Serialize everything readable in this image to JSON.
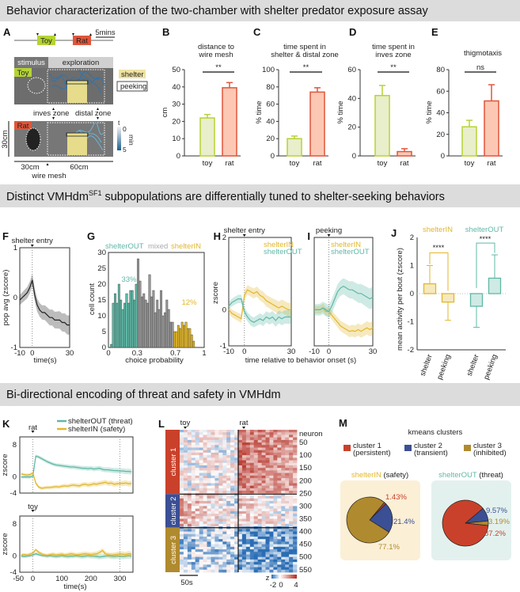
{
  "headers": {
    "row1": "Behavior characterization of the two-chamber with shelter predator exposure assay",
    "row2_pre": "Distinct VMHdm",
    "row2_sup": "SF1",
    "row2_post": " subpopulations are differentially tuned to shelter-seeking behaviors",
    "row3": "Bi-directional encoding of threat and safety in VMHdm"
  },
  "colors": {
    "toy": "#b5d334",
    "rat": "#e0553a",
    "shelterIN": "#e2b72a",
    "shelterOUT": "#5fb8a6",
    "mixed": "#999999",
    "cluster1": "#c9412a",
    "cluster2": "#3b4f94",
    "cluster3": "#b08a2e"
  },
  "panelA": {
    "label": "A",
    "toy": "Toy",
    "rat": "Rat",
    "scale": "5mins",
    "stimulus": "stimulus",
    "exploration": "exploration",
    "shelter": "shelter",
    "peeking": "peeking",
    "inves_zone": "inves zone",
    "distal_zone": "distal zone",
    "height": "30cm",
    "w1": "30cm",
    "w2": "60cm",
    "wire_mesh": "wire mesh",
    "cbar_t": "t",
    "cbar_min": "0",
    "cbar_max": "5",
    "cbar_unit": "min"
  },
  "chart_data": [
    {
      "id": "B",
      "type": "bar",
      "title": [
        "distance to",
        "wire mesh"
      ],
      "ylabel": "cm",
      "categories": [
        "toy",
        "rat"
      ],
      "values": [
        22,
        39.5
      ],
      "errors": [
        2,
        3
      ],
      "ylim": [
        0,
        50
      ],
      "yticks": [
        "0",
        "10",
        "20",
        "30",
        "40",
        "50"
      ],
      "significance": "**"
    },
    {
      "id": "C",
      "type": "bar",
      "title": [
        "time spent in",
        "shelter & distal zone"
      ],
      "ylabel": "% time",
      "categories": [
        "toy",
        "rat"
      ],
      "values": [
        20,
        74
      ],
      "errors": [
        3,
        5
      ],
      "ylim": [
        0,
        100
      ],
      "yticks": [
        "0",
        "20",
        "40",
        "60",
        "80",
        "100"
      ],
      "significance": "**"
    },
    {
      "id": "D",
      "type": "bar",
      "title": [
        "time spent in",
        "inves zone"
      ],
      "ylabel": "% time",
      "categories": [
        "toy",
        "rat"
      ],
      "values": [
        42,
        3
      ],
      "errors": [
        7,
        2
      ],
      "ylim": [
        0,
        60
      ],
      "yticks": [
        "0",
        "20",
        "40",
        "60"
      ],
      "significance": "**"
    },
    {
      "id": "E",
      "type": "bar",
      "title": [
        "thigmotaxis"
      ],
      "ylabel": "% time",
      "categories": [
        "toy",
        "rat"
      ],
      "values": [
        27,
        51
      ],
      "errors": [
        6,
        15
      ],
      "ylim": [
        0,
        80
      ],
      "yticks": [
        "0",
        "20",
        "40",
        "60",
        "80"
      ],
      "significance": "ns"
    },
    {
      "id": "F",
      "type": "line",
      "annotation": "shelter entry",
      "xlabel": "time(s)",
      "ylabel": "pop avg (zscore)",
      "xlim": [
        -10,
        30
      ],
      "ylim": [
        -1,
        1
      ],
      "xticks": [
        "-10",
        "0",
        "30"
      ],
      "yticks": [
        "-1",
        "0",
        "1"
      ],
      "x": [
        -10,
        -8,
        -6,
        -4,
        -2,
        0,
        2,
        4,
        6,
        8,
        10,
        12,
        14,
        16,
        18,
        20,
        22,
        24,
        26,
        28,
        30
      ],
      "series": [
        {
          "name": "population",
          "values": [
            -0.05,
            0,
            0.05,
            0.1,
            0.2,
            0.35,
            0.05,
            -0.15,
            -0.25,
            -0.3,
            -0.3,
            -0.35,
            -0.4,
            -0.4,
            -0.45,
            -0.45,
            -0.45,
            -0.5,
            -0.5,
            -0.55,
            -0.55
          ],
          "sem": 0.1
        }
      ]
    },
    {
      "id": "G",
      "type": "bar",
      "subtype": "histogram",
      "xlabel": "choice probability",
      "ylabel": "cell count",
      "xlim": [
        0,
        1
      ],
      "ylim": [
        0,
        30
      ],
      "xticks": [
        "0",
        "0.3",
        "0.7",
        "1"
      ],
      "yticks": [
        "0",
        "5",
        "10",
        "15",
        "20",
        "25",
        "30"
      ],
      "legend": [
        "shelterOUT",
        "mixed",
        "shelterIN"
      ],
      "annotations": [
        "33%",
        "12%"
      ],
      "bin_start": 0.02,
      "bin_width": 0.02,
      "counts": [
        1,
        14,
        17,
        14,
        20,
        15,
        12,
        14,
        17,
        14,
        18,
        18,
        15,
        20,
        28,
        21,
        16,
        17,
        15,
        14,
        23,
        16,
        18,
        11,
        15,
        12,
        18,
        10,
        11,
        15,
        12,
        8,
        8,
        5,
        5,
        7,
        6,
        8,
        7,
        8,
        6,
        6,
        4,
        2
      ]
    },
    {
      "id": "H",
      "type": "line",
      "annotation": "shelter entry",
      "ylabel": "zscore",
      "xlim": [
        -10,
        30
      ],
      "ylim": [
        -1,
        2
      ],
      "xticks": [
        "-10",
        "0",
        "30"
      ],
      "yticks": [
        "-1",
        "0",
        "2"
      ],
      "x": [
        -10,
        -8,
        -6,
        -4,
        -2,
        0,
        2,
        4,
        6,
        8,
        10,
        12,
        14,
        16,
        18,
        20,
        22,
        24,
        26,
        28,
        30
      ],
      "series": [
        {
          "name": "shelterIN",
          "values": [
            0,
            -0.1,
            -0.15,
            -0.2,
            -0.25,
            0.4,
            0.55,
            0.5,
            0.45,
            0.5,
            0.4,
            0.35,
            0.25,
            0.2,
            0.15,
            0.1,
            0.05,
            0.1,
            0.05,
            0,
            0
          ],
          "sem": 0.1
        },
        {
          "name": "shelterOUT",
          "values": [
            0.1,
            0.2,
            0.25,
            0.3,
            0.3,
            -0.05,
            -0.2,
            -0.3,
            -0.35,
            -0.3,
            -0.25,
            -0.3,
            -0.2,
            -0.25,
            -0.2,
            -0.3,
            -0.2,
            -0.25,
            -0.2,
            -0.2,
            -0.2
          ],
          "sem": 0.1
        }
      ]
    },
    {
      "id": "I",
      "type": "line",
      "annotation": "peeking",
      "xlabel": "time relative to behavior onset (s)",
      "xlim": [
        -10,
        30
      ],
      "ylim": [
        -1,
        2
      ],
      "xticks": [
        "-10",
        "0",
        "30"
      ],
      "x": [
        -10,
        -8,
        -6,
        -4,
        -2,
        0,
        2,
        4,
        6,
        8,
        10,
        12,
        14,
        16,
        18,
        20,
        22,
        24,
        26,
        28,
        30
      ],
      "series": [
        {
          "name": "shelterIN",
          "values": [
            0,
            0,
            0,
            0.05,
            -0.05,
            -0.05,
            -0.15,
            -0.25,
            -0.35,
            -0.45,
            -0.5,
            -0.55,
            -0.6,
            -0.58,
            -0.6,
            -0.55,
            -0.6,
            -0.55,
            -0.5,
            -0.55,
            -0.5
          ],
          "sem": 0.1
        },
        {
          "name": "shelterOUT",
          "values": [
            0,
            0,
            0,
            0.05,
            0,
            -0.05,
            0.1,
            0.3,
            0.5,
            0.6,
            0.65,
            0.6,
            0.55,
            0.55,
            0.5,
            0.45,
            0.45,
            0.4,
            0.35,
            0.3,
            0.35
          ],
          "sem": 0.15
        }
      ]
    },
    {
      "id": "J",
      "type": "bar",
      "ylabel": "mean activity per bout (zscore)",
      "ylim": [
        -2,
        2
      ],
      "yticks": [
        "-2",
        "-1",
        "0",
        "1",
        "2"
      ],
      "groups": [
        "shelterIN",
        "shelterOUT"
      ],
      "categories": [
        "shelter",
        "peeking",
        "shelter",
        "peeking"
      ],
      "values": [
        0.35,
        -0.3,
        -0.45,
        0.55
      ],
      "errors": [
        0.65,
        0.65,
        0.75,
        0.83
      ],
      "significance": [
        "****",
        "****"
      ]
    },
    {
      "id": "K",
      "type": "line",
      "xlabel": "time(s)",
      "ylabel": "zscore",
      "xlim": [
        -45,
        345
      ],
      "ylim": [
        -4,
        10
      ],
      "xticks": [
        "-50",
        "0",
        "100",
        "200",
        "300"
      ],
      "yticks": [
        "-4",
        "0",
        "8"
      ],
      "legend": [
        "shelterOUT (threat)",
        "shelterIN (safety)"
      ],
      "panels": [
        "rat",
        "toy"
      ],
      "x": [
        -40,
        -30,
        -20,
        -10,
        0,
        10,
        20,
        30,
        40,
        50,
        60,
        70,
        80,
        90,
        100,
        110,
        120,
        130,
        140,
        150,
        160,
        170,
        180,
        190,
        200,
        210,
        220,
        230,
        240,
        250,
        260,
        270,
        280,
        290,
        300,
        310,
        320,
        330,
        340
      ],
      "rat": [
        {
          "name": "shelterOUT",
          "values": [
            0,
            0,
            0,
            0,
            0.2,
            5.2,
            5,
            4.6,
            4.2,
            3.8,
            3.5,
            3.2,
            3,
            2.9,
            2.8,
            2.7,
            2.6,
            2.5,
            2.5,
            2.4,
            2.3,
            2.2,
            2.2,
            2.1,
            2.2,
            2.0,
            2.1,
            2.2,
            1.9,
            1.8,
            1.8,
            1.7,
            1.6,
            1.6,
            1.5,
            1.5,
            1.4,
            1.4,
            1.3
          ]
        },
        {
          "name": "shelterIN",
          "values": [
            0.8,
            0.6,
            0.5,
            0.6,
            1.0,
            -1.5,
            -2.5,
            -2.8,
            -2.7,
            -2.6,
            -2.6,
            -2.5,
            -2.4,
            -2.5,
            -2.3,
            -2.2,
            -2.3,
            -2.1,
            -2.0,
            -2.1,
            -2.2,
            -1.9,
            -1.8,
            -2.0,
            -1.9,
            -1.7,
            -1.8,
            -1.6,
            -1.5,
            -1.3,
            -1.6,
            -1.5,
            -1.8,
            -1.7,
            -1.6,
            -1.6,
            -1.5,
            -1.7,
            -1.6
          ]
        }
      ],
      "toy": [
        {
          "name": "shelterOUT",
          "values": [
            0,
            -0.1,
            0,
            0.1,
            0.3,
            0.6,
            0.4,
            0.2,
            0.1,
            0,
            0.1,
            0,
            -0.1,
            0,
            0.1,
            0,
            -0.1,
            0,
            0,
            0.1,
            0,
            -0.1,
            0,
            0.1,
            0,
            0,
            -0.1,
            -0.2,
            -0.1,
            0,
            0.1,
            0,
            -0.1,
            0,
            0,
            -0.1,
            0,
            0.1,
            0
          ]
        },
        {
          "name": "shelterIN",
          "values": [
            0.3,
            0.4,
            0.3,
            0.5,
            0.8,
            1.6,
            1.0,
            0.6,
            0.3,
            0.2,
            0.4,
            0.5,
            0.3,
            0.4,
            0.5,
            0.3,
            0.4,
            0.6,
            0.5,
            0.3,
            0.4,
            0.5,
            0.6,
            0.5,
            0.4,
            0.5,
            0.6,
            0.9,
            1.4,
            0.6,
            0.3,
            0.2,
            0.3,
            0.4,
            0.6,
            0.5,
            0.4,
            0.6,
            0.5
          ]
        }
      ]
    },
    {
      "id": "L",
      "type": "heatmap",
      "stimuli": [
        "toy",
        "rat"
      ],
      "ylabel": "neuron",
      "yticks": [
        "50",
        "100",
        "150",
        "200",
        "250",
        "300",
        "350",
        "400",
        "450",
        "500",
        "550"
      ],
      "n_neurons": 560,
      "clusters": [
        {
          "name": "cluster 1",
          "start": 0,
          "end": 253,
          "toy_mean": 0.2,
          "rat_mean": 2.2
        },
        {
          "name": "cluster 2",
          "start": 253,
          "end": 385,
          "toy_mean": 1.0,
          "rat_mean": 0.6
        },
        {
          "name": "cluster 3",
          "start": 385,
          "end": 560,
          "toy_mean": -0.6,
          "rat_mean": -1.3
        }
      ],
      "scale_bar": "50s",
      "colorbar": {
        "label": "z",
        "ticks": [
          "-2",
          "0",
          "4"
        ],
        "range": [
          -2,
          4
        ]
      }
    },
    {
      "id": "M",
      "type": "pie",
      "title": "kmeans clusters",
      "legend": [
        {
          "name": "cluster 1",
          "desc": "(persistent)"
        },
        {
          "name": "cluster 2",
          "desc": "(transient)"
        },
        {
          "name": "cluster 3",
          "desc": "(inhibited)"
        }
      ],
      "pies": [
        {
          "group": "shelterIN",
          "suffix": " (safety)",
          "values": [
            1.43,
            21.4,
            77.1
          ],
          "labels": [
            "1.43%",
            "21.4%",
            "77.1%"
          ]
        },
        {
          "group": "shelterOUT",
          "suffix": " (threat)",
          "values": [
            87.2,
            9.57,
            3.19
          ],
          "labels": [
            "87.2%",
            "9.57%",
            "3.19%"
          ]
        }
      ]
    }
  ]
}
